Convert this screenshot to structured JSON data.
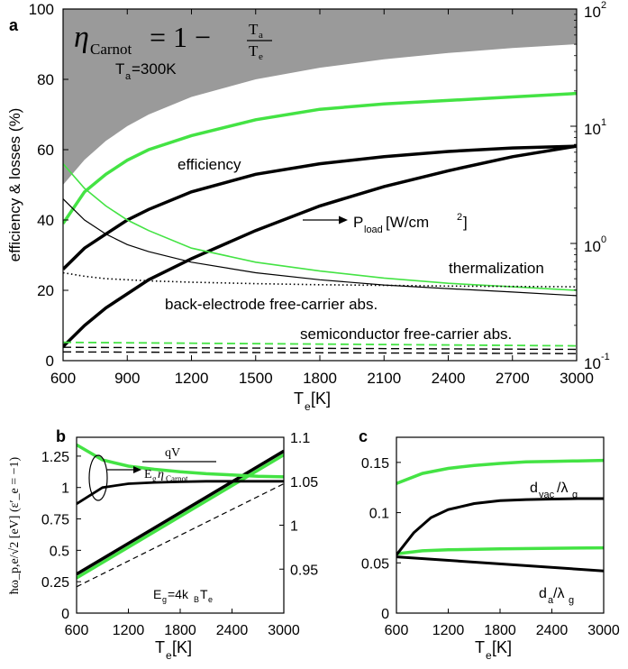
{
  "chart_data": [
    {
      "panel": "a",
      "type": "line",
      "xlabel_main": "T",
      "xlabel_sub": "e",
      "xlabel_unit": " [K]",
      "ylabel": "efficiency & losses (%)",
      "xlim": [
        600,
        3000
      ],
      "ylim": [
        0,
        100
      ],
      "xticks": [
        "600",
        "900",
        "1200",
        "1500",
        "1800",
        "2100",
        "2400",
        "2700",
        "3000"
      ],
      "yticks": [
        "0",
        "20",
        "40",
        "60",
        "80",
        "100"
      ],
      "y2_log_range": [
        0.1,
        100
      ],
      "y2_ticks": [
        {
          "value": 0.1,
          "base": "10",
          "exp": "-1"
        },
        {
          "value": 1,
          "base": "10",
          "exp": "0"
        },
        {
          "value": 10,
          "base": "10",
          "exp": "1"
        },
        {
          "value": 100,
          "base": "10",
          "exp": "2"
        }
      ],
      "formula": {
        "eta": "η",
        "eta_sub": "Carnot",
        "rhs": "= 1 −",
        "num": "T",
        "num_sub": "a",
        "den": "T",
        "den_sub": "e"
      },
      "ta_label": {
        "main": "T",
        "sub": "a",
        "rest": "=300K"
      },
      "annotations": {
        "efficiency": "efficiency",
        "pload_main": "P",
        "pload_sub": "load",
        "pload_unit": " [W/cm",
        "pload_sup": "2",
        "pload_end": "]",
        "thermalization": "thermalization",
        "back_electrode": "back-electrode free-carrier abs.",
        "semiconductor": "semiconductor free-carrier abs."
      },
      "series": [
        {
          "name": "carnot-limit",
          "x": [
            600,
            700,
            800,
            900,
            1000,
            1200,
            1500,
            1800,
            2100,
            2400,
            2700,
            3000
          ],
          "values": [
            50,
            57.1,
            62.5,
            66.7,
            70,
            75,
            80,
            83.3,
            85.7,
            87.5,
            88.9,
            90
          ]
        },
        {
          "name": "efficiency-green",
          "x": [
            600,
            700,
            800,
            900,
            1000,
            1200,
            1500,
            1800,
            2100,
            2400,
            2700,
            3000
          ],
          "values": [
            39,
            48,
            53,
            57,
            60,
            64,
            68.5,
            71.5,
            73,
            74,
            75,
            76
          ]
        },
        {
          "name": "efficiency-black",
          "x": [
            600,
            700,
            800,
            900,
            1000,
            1200,
            1500,
            1800,
            2100,
            2400,
            2700,
            3000
          ],
          "values": [
            26,
            32,
            36,
            40,
            43,
            48,
            53,
            56,
            58,
            59.5,
            60.5,
            61
          ]
        },
        {
          "name": "pload-black",
          "x": [
            600,
            700,
            800,
            900,
            1000,
            1200,
            1500,
            1800,
            2100,
            2400,
            2700,
            3000
          ],
          "values": [
            4,
            10,
            15,
            19,
            23,
            29,
            37,
            44,
            49.5,
            54,
            58,
            61
          ]
        },
        {
          "name": "thermalization-green",
          "x": [
            600,
            700,
            800,
            900,
            1000,
            1200,
            1500,
            1800,
            2100,
            2400,
            2700,
            3000
          ],
          "values": [
            56,
            49,
            44,
            40,
            37,
            32,
            28,
            25.5,
            23.5,
            22,
            21,
            20
          ]
        },
        {
          "name": "thermalization-black",
          "x": [
            600,
            700,
            800,
            900,
            1000,
            1200,
            1500,
            1800,
            2100,
            2400,
            2700,
            3000
          ],
          "values": [
            46,
            40,
            36,
            33,
            31,
            28,
            25,
            23,
            21.5,
            20.5,
            19.5,
            18.5
          ]
        },
        {
          "name": "back-electrode-dotted",
          "x": [
            600,
            700,
            800,
            900,
            1000,
            1200,
            1500,
            1800,
            2100,
            2400,
            2700,
            3000
          ],
          "values": [
            25,
            24,
            23.3,
            23,
            22.7,
            22.3,
            21.9,
            21.6,
            21.4,
            21.2,
            21.1,
            21
          ]
        },
        {
          "name": "semiconductor-green-dashed",
          "x": [
            600,
            3000
          ],
          "values": [
            5.2,
            4.2
          ]
        },
        {
          "name": "semiconductor-black-dashed-1",
          "x": [
            600,
            3000
          ],
          "values": [
            3.8,
            3.2
          ]
        },
        {
          "name": "semiconductor-black-dashed-2",
          "x": [
            600,
            3000
          ],
          "values": [
            2.5,
            2.0
          ]
        }
      ]
    },
    {
      "panel": "b",
      "type": "line",
      "xlabel_main": "T",
      "xlabel_sub": "e",
      "xlabel_unit": " [K]",
      "ylabel": "ħω_p,e/√2 [eV]   (ε′_e = −1)",
      "xlim": [
        600,
        3000
      ],
      "ylim": [
        0,
        1.4
      ],
      "xticks": [
        "600",
        "1200",
        "1800",
        "2400",
        "3000"
      ],
      "yticks": [
        "0",
        "0.25",
        "0.5",
        "0.75",
        "1",
        "1.25"
      ],
      "y2lim": [
        0.9,
        1.1
      ],
      "y2ticks": [
        "0.95",
        "1",
        "1.05",
        "1.1"
      ],
      "annotations": {
        "ratio_num": "qV",
        "ratio_den_main": "E",
        "ratio_den_sub": "g",
        "ratio_den_eta": "η",
        "ratio_den_eta_sub": "Carnot",
        "eg_main": "E",
        "eg_sub": "g",
        "eg_rest": "=4k",
        "eg_sub2": "B",
        "eg_rest2": "T",
        "eg_sub3": "e"
      },
      "series": [
        {
          "name": "ratio-green",
          "x": [
            600,
            900,
            1200,
            1500,
            1800,
            2100,
            2400,
            2700,
            3000
          ],
          "values": [
            1.34,
            1.22,
            1.17,
            1.145,
            1.125,
            1.11,
            1.1,
            1.09,
            1.085
          ]
        },
        {
          "name": "ratio-black",
          "x": [
            600,
            900,
            1200,
            1500,
            1800,
            2100,
            2400,
            2700,
            3000
          ],
          "values": [
            0.87,
            1.0,
            1.03,
            1.04,
            1.045,
            1.05,
            1.05,
            1.05,
            1.05
          ]
        },
        {
          "name": "plasma-black",
          "x": [
            600,
            3000
          ],
          "values": [
            0.31,
            1.29
          ]
        },
        {
          "name": "plasma-green",
          "x": [
            600,
            3000
          ],
          "values": [
            0.28,
            1.26
          ]
        },
        {
          "name": "eg-dashed",
          "x": [
            600,
            3000
          ],
          "values": [
            0.21,
            1.03
          ]
        }
      ]
    },
    {
      "panel": "c",
      "type": "line",
      "xlabel_main": "T",
      "xlabel_sub": "e",
      "xlabel_unit": " [K]",
      "xlim": [
        600,
        3000
      ],
      "ylim": [
        0,
        0.175
      ],
      "xticks": [
        "600",
        "1200",
        "1800",
        "2400",
        "3000"
      ],
      "yticks": [
        "0",
        "0.05",
        "0.1",
        "0.15"
      ],
      "annotations": {
        "dvac_main": "d",
        "dvac_sub": "vac",
        "dvac_rest": "/λ",
        "dvac_sub2": "g",
        "da_main": "d",
        "da_sub": "a",
        "da_rest": "/λ",
        "da_sub2": "g"
      },
      "series": [
        {
          "name": "dvac-green",
          "x": [
            600,
            900,
            1200,
            1500,
            1800,
            2100,
            2400,
            2700,
            3000
          ],
          "values": [
            0.129,
            0.139,
            0.144,
            0.147,
            0.149,
            0.1505,
            0.151,
            0.1515,
            0.152
          ]
        },
        {
          "name": "dvac-black",
          "x": [
            600,
            800,
            1000,
            1200,
            1500,
            1800,
            2100,
            2400,
            2700,
            3000
          ],
          "values": [
            0.058,
            0.08,
            0.095,
            0.103,
            0.109,
            0.112,
            0.113,
            0.1135,
            0.114,
            0.114
          ]
        },
        {
          "name": "da-green",
          "x": [
            600,
            900,
            1200,
            1800,
            2400,
            3000
          ],
          "values": [
            0.059,
            0.062,
            0.063,
            0.064,
            0.0645,
            0.065
          ]
        },
        {
          "name": "da-black",
          "x": [
            600,
            3000
          ],
          "values": [
            0.056,
            0.042
          ]
        }
      ]
    }
  ],
  "panel_labels": [
    "a",
    "b",
    "c"
  ],
  "colors": {
    "green": "#44e344",
    "black": "#000000",
    "gray": "#9a9a9a"
  }
}
